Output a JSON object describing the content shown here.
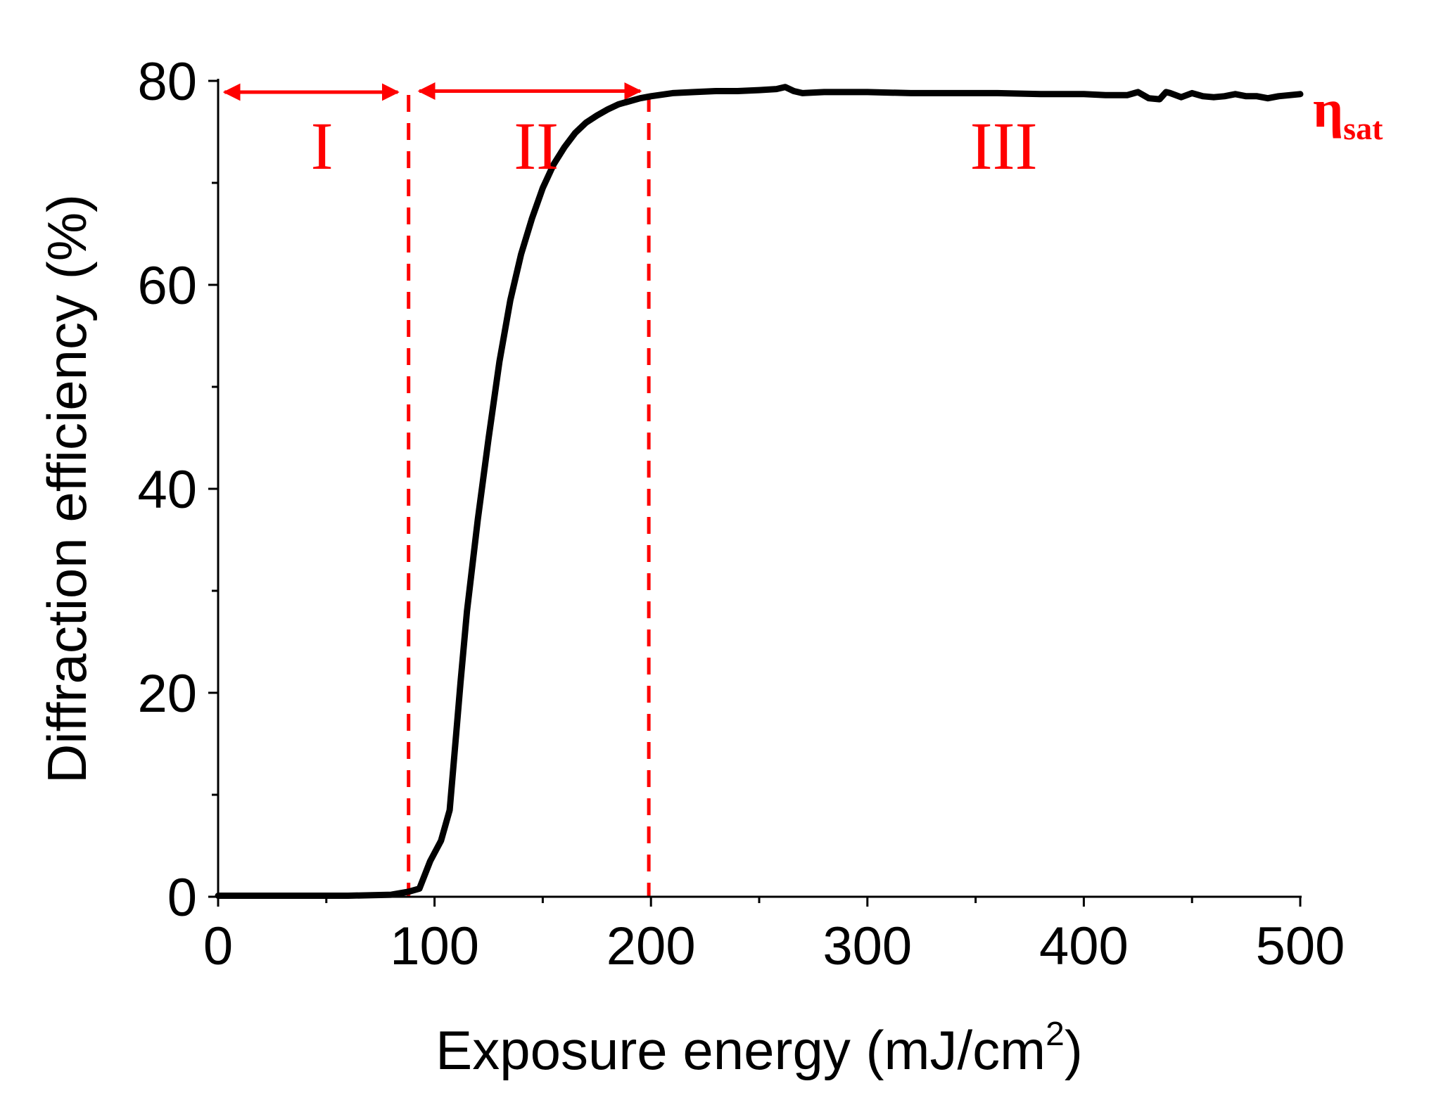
{
  "chart_data": {
    "type": "line",
    "title": "",
    "xlabel": "Exposure energy (mJ/cm",
    "xlabel_superscript": "2",
    "xlabel_suffix": ")",
    "ylabel": "Diffraction efficiency (%)",
    "xlim": [
      0,
      500
    ],
    "ylim": [
      0,
      80
    ],
    "xticks": [
      "0",
      "100",
      "200",
      "300",
      "400",
      "500"
    ],
    "yticks": [
      "0",
      "20",
      "40",
      "60",
      "80"
    ],
    "x_minor_step": 50,
    "y_minor_step": 10,
    "series": [
      {
        "name": "Diffraction efficiency",
        "color": "#000000",
        "x": [
          0,
          20,
          40,
          60,
          80,
          88,
          93,
          98,
          103,
          107,
          110,
          112,
          115,
          120,
          125,
          130,
          135,
          140,
          145,
          150,
          155,
          160,
          165,
          170,
          175,
          180,
          185,
          190,
          195,
          200,
          210,
          220,
          230,
          240,
          250,
          258,
          262,
          266,
          270,
          280,
          290,
          300,
          320,
          340,
          360,
          380,
          400,
          410,
          420,
          425,
          430,
          435,
          438,
          440,
          445,
          450,
          455,
          460,
          465,
          470,
          475,
          480,
          485,
          490,
          495,
          500
        ],
        "y": [
          0.1,
          0.1,
          0.1,
          0.1,
          0.2,
          0.5,
          0.8,
          3.5,
          5.5,
          8.5,
          16,
          21,
          28,
          37,
          45,
          52.5,
          58.5,
          63,
          66.5,
          69.5,
          71.8,
          73.5,
          74.9,
          75.9,
          76.6,
          77.2,
          77.7,
          78.0,
          78.3,
          78.5,
          78.8,
          78.9,
          79.0,
          79.0,
          79.1,
          79.2,
          79.4,
          79.0,
          78.8,
          78.9,
          78.9,
          78.9,
          78.8,
          78.8,
          78.8,
          78.7,
          78.7,
          78.6,
          78.6,
          78.9,
          78.3,
          78.2,
          78.9,
          78.8,
          78.4,
          78.8,
          78.5,
          78.4,
          78.5,
          78.7,
          78.5,
          78.5,
          78.3,
          78.5,
          78.6,
          78.7
        ]
      }
    ],
    "vertical_markers": [
      {
        "x": 88,
        "color": "#ff0000",
        "style": "dashed"
      },
      {
        "x": 199,
        "color": "#ff0000",
        "style": "dashed"
      }
    ],
    "region_arrows": [
      {
        "x_start": 3,
        "x_end": 83,
        "y": 78.9
      },
      {
        "x_start": 93,
        "x_end": 195,
        "y": 79.0
      }
    ],
    "annotations": {
      "region_1": "I",
      "region_2": "II",
      "region_3": "III",
      "eta_symbol": "η",
      "eta_subscript": "sat"
    },
    "annotation_color": "#ff0000"
  }
}
